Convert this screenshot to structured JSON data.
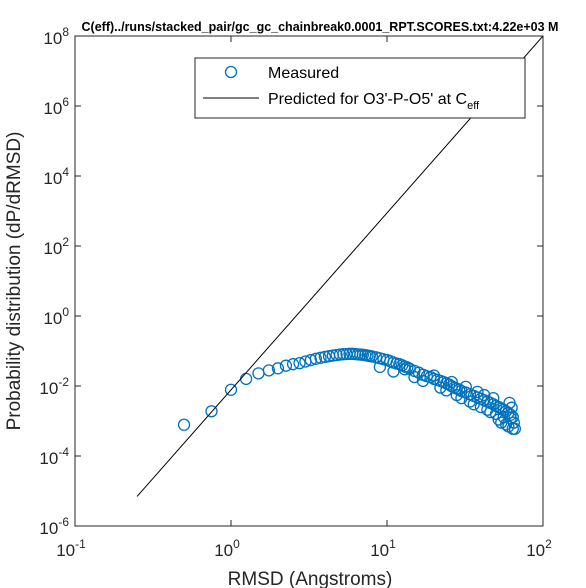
{
  "chart_data": {
    "type": "scatter",
    "title": "C(eff)../runs/stacked_pair/gc_gc_chainbreak0.0001_RPT.SCORES.txt:4.22e+03 M",
    "xlabel": "RMSD (Angstroms)",
    "ylabel": "Probability distribution (dP/dRMSD)",
    "xscale": "log",
    "yscale": "log",
    "xlim": [
      0.1,
      100
    ],
    "ylim": [
      1e-06,
      100000000.0
    ],
    "grid": false,
    "legend_position": "top-right",
    "x_ticks": [
      {
        "base": "10",
        "exp": "-1",
        "value": 0.1
      },
      {
        "base": "10",
        "exp": "0",
        "value": 1
      },
      {
        "base": "10",
        "exp": "1",
        "value": 10
      },
      {
        "base": "10",
        "exp": "2",
        "value": 100
      }
    ],
    "y_ticks": [
      {
        "base": "10",
        "exp": "-6",
        "value": 1e-06
      },
      {
        "base": "10",
        "exp": "-4",
        "value": 0.0001
      },
      {
        "base": "10",
        "exp": "-2",
        "value": 0.01
      },
      {
        "base": "10",
        "exp": "0",
        "value": 1
      },
      {
        "base": "10",
        "exp": "2",
        "value": 100.0
      },
      {
        "base": "10",
        "exp": "4",
        "value": 10000.0
      },
      {
        "base": "10",
        "exp": "6",
        "value": 1000000.0
      },
      {
        "base": "10",
        "exp": "8",
        "value": 100000000.0
      }
    ],
    "series": [
      {
        "name": "Measured",
        "style": "markers",
        "marker": "circle",
        "color": "#0072BD",
        "points": [
          [
            0.5,
            0.00078
          ],
          [
            0.75,
            0.0019
          ],
          [
            1.0,
            0.0078
          ],
          [
            1.25,
            0.016
          ],
          [
            1.5,
            0.023
          ],
          [
            1.75,
            0.028
          ],
          [
            2.0,
            0.032
          ],
          [
            2.25,
            0.038
          ],
          [
            2.5,
            0.042
          ],
          [
            2.75,
            0.045
          ],
          [
            3.0,
            0.05
          ],
          [
            3.25,
            0.055
          ],
          [
            3.5,
            0.06
          ],
          [
            3.75,
            0.064
          ],
          [
            4.0,
            0.068
          ],
          [
            4.25,
            0.071
          ],
          [
            4.5,
            0.074
          ],
          [
            4.75,
            0.077
          ],
          [
            5.0,
            0.079
          ],
          [
            5.25,
            0.081
          ],
          [
            5.5,
            0.082
          ],
          [
            5.75,
            0.083
          ],
          [
            6.0,
            0.083
          ],
          [
            6.25,
            0.082
          ],
          [
            6.5,
            0.08
          ],
          [
            6.75,
            0.079
          ],
          [
            7.0,
            0.078
          ],
          [
            7.25,
            0.076
          ],
          [
            7.5,
            0.074
          ],
          [
            7.75,
            0.072
          ],
          [
            8.0,
            0.07
          ],
          [
            8.5,
            0.066
          ],
          [
            9.0,
            0.062
          ],
          [
            9.5,
            0.058
          ],
          [
            10.0,
            0.055
          ],
          [
            10.5,
            0.051
          ],
          [
            11.0,
            0.047
          ],
          [
            11.5,
            0.044
          ],
          [
            12.0,
            0.042
          ],
          [
            12.5,
            0.039
          ],
          [
            13.0,
            0.036
          ],
          [
            13.5,
            0.034
          ],
          [
            14.0,
            0.031
          ],
          [
            15.0,
            0.027
          ],
          [
            16.0,
            0.024
          ],
          [
            17.0,
            0.021
          ],
          [
            18.0,
            0.019
          ],
          [
            19.0,
            0.018
          ],
          [
            20.0,
            0.016
          ],
          [
            21.0,
            0.015
          ],
          [
            22.0,
            0.014
          ],
          [
            23.0,
            0.013
          ],
          [
            24.0,
            0.012
          ],
          [
            25.0,
            0.011
          ],
          [
            26.0,
            0.0098
          ],
          [
            27.0,
            0.009
          ],
          [
            28.0,
            0.0085
          ],
          [
            29.0,
            0.0079
          ],
          [
            30.0,
            0.0072
          ],
          [
            32.0,
            0.0065
          ],
          [
            34.0,
            0.0058
          ],
          [
            36.0,
            0.0052
          ],
          [
            38.0,
            0.0047
          ],
          [
            40.0,
            0.0043
          ],
          [
            42.0,
            0.0039
          ],
          [
            44.0,
            0.0036
          ],
          [
            46.0,
            0.0033
          ],
          [
            48.0,
            0.003
          ],
          [
            50.0,
            0.0027
          ],
          [
            52.0,
            0.0025
          ],
          [
            54.0,
            0.0023
          ],
          [
            56.0,
            0.0021
          ],
          [
            58.0,
            0.0019
          ],
          [
            60.0,
            0.0017
          ],
          [
            62.0,
            0.0015
          ],
          [
            64.0,
            0.0013
          ],
          [
            9.0,
            0.035
          ],
          [
            11.0,
            0.026
          ],
          [
            13.0,
            0.03
          ],
          [
            15.0,
            0.018
          ],
          [
            17.0,
            0.014
          ],
          [
            20.0,
            0.02
          ],
          [
            22.0,
            0.009
          ],
          [
            24.0,
            0.0075
          ],
          [
            26.0,
            0.013
          ],
          [
            28.0,
            0.0055
          ],
          [
            30.0,
            0.0045
          ],
          [
            32.0,
            0.0095
          ],
          [
            34.0,
            0.0036
          ],
          [
            36.0,
            0.003
          ],
          [
            38.0,
            0.0068
          ],
          [
            40.0,
            0.0025
          ],
          [
            42.0,
            0.0055
          ],
          [
            44.0,
            0.0021
          ],
          [
            46.0,
            0.0018
          ],
          [
            48.0,
            0.0045
          ],
          [
            50.0,
            0.0016
          ],
          [
            52.0,
            0.0011
          ],
          [
            54.0,
            0.0009
          ],
          [
            56.0,
            0.0013
          ],
          [
            58.0,
            0.0008
          ],
          [
            60.0,
            0.0007
          ],
          [
            62.0,
            0.0012
          ],
          [
            64.0,
            0.0006
          ],
          [
            66.0,
            0.0006
          ],
          [
            65.0,
            0.0009
          ],
          [
            63.0,
            0.0024
          ],
          [
            61.0,
            0.0033
          ]
        ]
      },
      {
        "name": "Predicted for O3'-P-O5' at C",
        "name_subscript": "eff",
        "style": "line",
        "color": "#000000",
        "points": [
          [
            0.25,
            7e-06
          ],
          [
            100,
            100000000.0
          ]
        ]
      }
    ]
  }
}
